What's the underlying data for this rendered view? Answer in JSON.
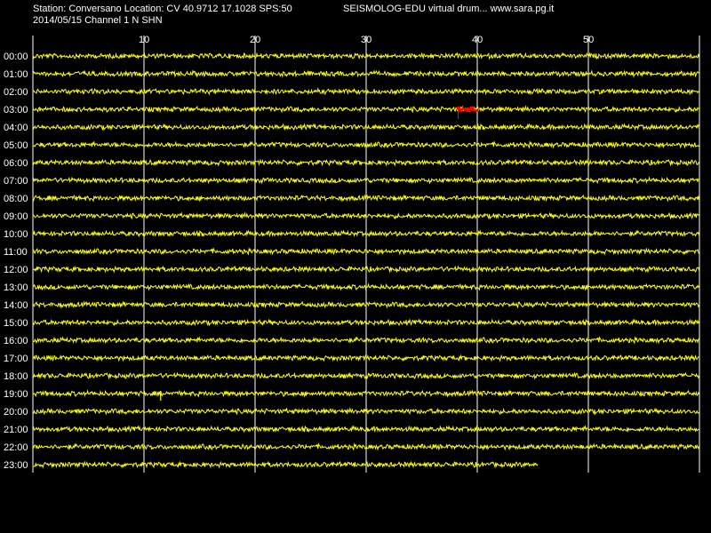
{
  "header": {
    "station_line": "Station: Conversano Location: CV 40.9712 17.1028 SPS:50",
    "date_line": "2014/05/15  Channel 1 N SHN",
    "title": "SEISMOLOG-EDU virtual drum... www.sara.pg.it"
  },
  "colors": {
    "background": "#000000",
    "trace": "#ffff00",
    "event": "#ff0000",
    "grid": "#ffffff",
    "text": "#ffffff"
  },
  "chart_data": {
    "type": "line",
    "title": "",
    "xlabel": "",
    "ylabel": "",
    "x_unit_minutes": true,
    "xlim": [
      0,
      60
    ],
    "x_ticks": [
      10,
      20,
      30,
      40,
      50
    ],
    "hour_labels": [
      "00:00",
      "01:00",
      "02:00",
      "03:00",
      "04:00",
      "05:00",
      "06:00",
      "07:00",
      "08:00",
      "09:00",
      "10:00",
      "11:00",
      "12:00",
      "13:00",
      "14:00",
      "15:00",
      "16:00",
      "17:00",
      "18:00",
      "19:00",
      "20:00",
      "21:00",
      "22:00",
      "23:00"
    ],
    "last_row_end_minute": 45.5,
    "events": [
      {
        "hour": 3,
        "start_minute": 38.2,
        "end_minute": 40.2,
        "color": "#ff0000"
      }
    ],
    "spikes": [
      {
        "hour": 19,
        "minute": 11.5
      }
    ],
    "grid": true
  }
}
